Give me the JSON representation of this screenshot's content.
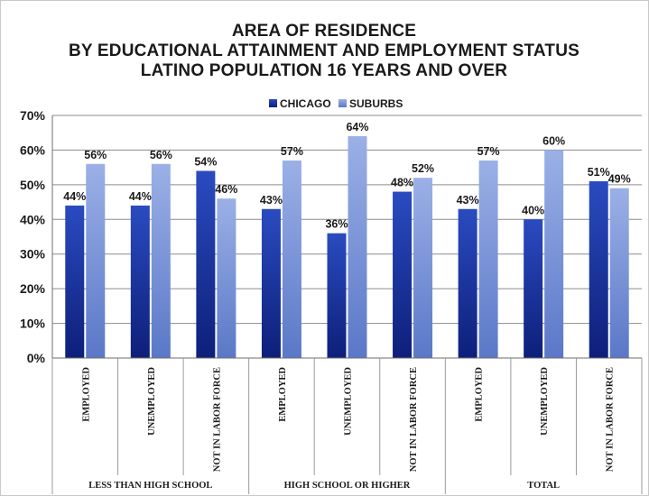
{
  "chart_data": {
    "type": "bar",
    "title_lines": [
      "AREA OF RESIDENCE",
      "BY EDUCATIONAL ATTAINMENT AND EMPLOYMENT STATUS",
      "LATINO POPULATION 16 YEARS AND OVER"
    ],
    "legend_position": "top",
    "categories": [
      "EMPLOYED",
      "UNEMPLOYED",
      "NOT IN LABOR FORCE",
      "EMPLOYED",
      "UNEMPLOYED",
      "NOT IN LABOR FORCE",
      "EMPLOYED",
      "UNEMPLOYED",
      "NOT IN LABOR FORCE"
    ],
    "groups": [
      {
        "label": "LESS THAN HIGH SCHOOL",
        "span": 3
      },
      {
        "label": "HIGH SCHOOL OR HIGHER",
        "span": 3
      },
      {
        "label": "TOTAL",
        "span": 3
      }
    ],
    "series": [
      {
        "name": "CHICAGO",
        "color": "#1f3a9e",
        "values": [
          44,
          44,
          54,
          43,
          36,
          48,
          43,
          40,
          51
        ],
        "labels": [
          "44%",
          "44%",
          "54%",
          "43%",
          "36%",
          "48%",
          "43%",
          "40%",
          "51%"
        ]
      },
      {
        "name": "SUBURBS",
        "color": "#7f9ad9",
        "values": [
          56,
          56,
          46,
          57,
          64,
          52,
          57,
          60,
          49
        ],
        "labels": [
          "56%",
          "56%",
          "46%",
          "57%",
          "64%",
          "52%",
          "57%",
          "60%",
          "49%"
        ]
      }
    ],
    "ylim": [
      0,
      70
    ],
    "yticks": [
      "0%",
      "10%",
      "20%",
      "30%",
      "40%",
      "50%",
      "60%",
      "70%"
    ],
    "grid": true
  }
}
